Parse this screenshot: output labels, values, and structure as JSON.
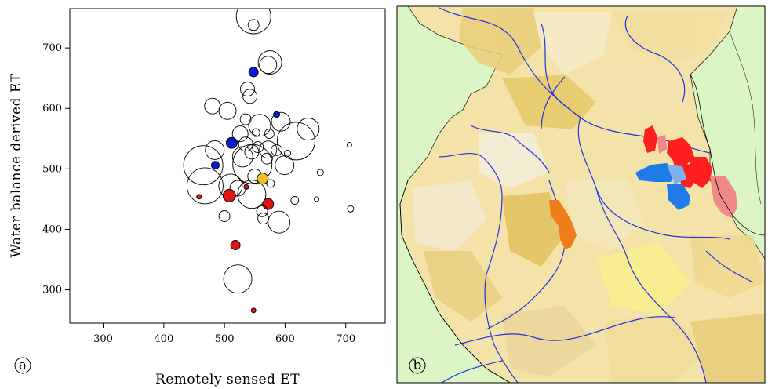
{
  "panel_a": {
    "label": "a",
    "xlabel": "Remotely sensed ET",
    "ylabel": "Water balance derived ET"
  },
  "panel_b": {
    "label": "b"
  },
  "colors": {
    "circle_stroke": "#000000",
    "blue_points": "#0a1acc",
    "red_points": "#e01414",
    "yellow_point": "#f0c020",
    "map_background": "#dcf5c4",
    "basin_fill_light": "#f3e3a8",
    "river": "#2233dd",
    "highlight_red": "#ff1f1f",
    "highlight_pink": "#f08a8a",
    "highlight_blue": "#1e7be8",
    "highlight_orange": "#f07d1c"
  },
  "chart_data": [
    {
      "type": "scatter",
      "title": "",
      "xlabel": "Remotely sensed ET",
      "ylabel": "Water balance derived ET",
      "xlim": [
        245,
        765
      ],
      "ylim": [
        245,
        765
      ],
      "xticks": [
        300,
        400,
        500,
        600,
        700
      ],
      "yticks": [
        300,
        400,
        500,
        600,
        700
      ],
      "grid": false,
      "encoding": "circle area proportional to catchment size; filled circles are highlighted catchments",
      "points": [
        {
          "x": 548,
          "y": 752,
          "r": 22,
          "fill": "none"
        },
        {
          "x": 548,
          "y": 738,
          "r": 7,
          "fill": "none"
        },
        {
          "x": 575,
          "y": 676,
          "r": 15,
          "fill": "none"
        },
        {
          "x": 572,
          "y": 672,
          "r": 11,
          "fill": "none"
        },
        {
          "x": 548,
          "y": 660,
          "r": 6,
          "fill": "blue"
        },
        {
          "x": 538,
          "y": 632,
          "r": 9,
          "fill": "none"
        },
        {
          "x": 542,
          "y": 620,
          "r": 9,
          "fill": "none"
        },
        {
          "x": 480,
          "y": 604,
          "r": 10,
          "fill": "none"
        },
        {
          "x": 505,
          "y": 596,
          "r": 11,
          "fill": "none"
        },
        {
          "x": 535,
          "y": 582,
          "r": 7,
          "fill": "none"
        },
        {
          "x": 586,
          "y": 590,
          "r": 4,
          "fill": "blue"
        },
        {
          "x": 593,
          "y": 578,
          "r": 12,
          "fill": "none"
        },
        {
          "x": 558,
          "y": 572,
          "r": 14,
          "fill": "none"
        },
        {
          "x": 638,
          "y": 566,
          "r": 14,
          "fill": "none"
        },
        {
          "x": 618,
          "y": 546,
          "r": 24,
          "fill": "none"
        },
        {
          "x": 574,
          "y": 558,
          "r": 6,
          "fill": "none"
        },
        {
          "x": 552,
          "y": 560,
          "r": 5,
          "fill": "none"
        },
        {
          "x": 526,
          "y": 558,
          "r": 10,
          "fill": "none"
        },
        {
          "x": 512,
          "y": 543,
          "r": 7,
          "fill": "blue"
        },
        {
          "x": 535,
          "y": 541,
          "r": 9,
          "fill": "none"
        },
        {
          "x": 555,
          "y": 536,
          "r": 7,
          "fill": "none"
        },
        {
          "x": 545,
          "y": 528,
          "r": 9,
          "fill": "none"
        },
        {
          "x": 530,
          "y": 520,
          "r": 13,
          "fill": "none"
        },
        {
          "x": 572,
          "y": 532,
          "r": 11,
          "fill": "none"
        },
        {
          "x": 586,
          "y": 531,
          "r": 7,
          "fill": "none"
        },
        {
          "x": 604,
          "y": 526,
          "r": 4,
          "fill": "none"
        },
        {
          "x": 570,
          "y": 517,
          "r": 7,
          "fill": "none"
        },
        {
          "x": 484,
          "y": 531,
          "r": 12,
          "fill": "none"
        },
        {
          "x": 706,
          "y": 540,
          "r": 3,
          "fill": "none"
        },
        {
          "x": 599,
          "y": 506,
          "r": 12,
          "fill": "none"
        },
        {
          "x": 485,
          "y": 506,
          "r": 5,
          "fill": "blue"
        },
        {
          "x": 465,
          "y": 506,
          "r": 25,
          "fill": "none"
        },
        {
          "x": 546,
          "y": 508,
          "r": 25,
          "fill": "none"
        },
        {
          "x": 658,
          "y": 494,
          "r": 4,
          "fill": "none"
        },
        {
          "x": 550,
          "y": 488,
          "r": 9,
          "fill": "none"
        },
        {
          "x": 563,
          "y": 484,
          "r": 7,
          "fill": "yellow"
        },
        {
          "x": 468,
          "y": 472,
          "r": 23,
          "fill": "none"
        },
        {
          "x": 510,
          "y": 472,
          "r": 15,
          "fill": "none"
        },
        {
          "x": 522,
          "y": 468,
          "r": 10,
          "fill": "none"
        },
        {
          "x": 536,
          "y": 470,
          "r": 3,
          "fill": "red"
        },
        {
          "x": 576,
          "y": 476,
          "r": 5,
          "fill": "none"
        },
        {
          "x": 545,
          "y": 458,
          "r": 18,
          "fill": "none"
        },
        {
          "x": 508,
          "y": 456,
          "r": 8,
          "fill": "red"
        },
        {
          "x": 458,
          "y": 454,
          "r": 3,
          "fill": "red"
        },
        {
          "x": 616,
          "y": 448,
          "r": 5,
          "fill": "none"
        },
        {
          "x": 652,
          "y": 450,
          "r": 3,
          "fill": "none"
        },
        {
          "x": 572,
          "y": 442,
          "r": 7,
          "fill": "red"
        },
        {
          "x": 562,
          "y": 430,
          "r": 7,
          "fill": "none"
        },
        {
          "x": 708,
          "y": 434,
          "r": 4,
          "fill": "none"
        },
        {
          "x": 500,
          "y": 422,
          "r": 7,
          "fill": "none"
        },
        {
          "x": 564,
          "y": 418,
          "r": 7,
          "fill": "none"
        },
        {
          "x": 590,
          "y": 412,
          "r": 14,
          "fill": "none"
        },
        {
          "x": 518,
          "y": 374,
          "r": 6,
          "fill": "red"
        },
        {
          "x": 522,
          "y": 318,
          "r": 18,
          "fill": "none"
        },
        {
          "x": 548,
          "y": 266,
          "r": 3,
          "fill": "red"
        }
      ]
    }
  ]
}
